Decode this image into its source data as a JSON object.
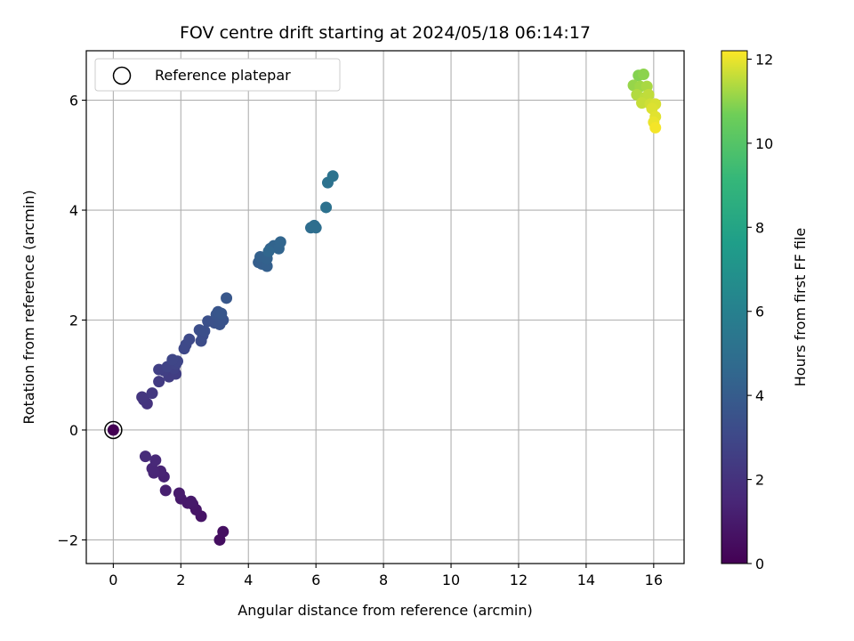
{
  "chart_data": {
    "type": "scatter",
    "title": "FOV centre drift starting at 2024/05/18 06:14:17",
    "xlabel": "Angular distance from reference (arcmin)",
    "ylabel": "Rotation from reference (arcmin)",
    "xlim": [
      -0.8,
      16.9
    ],
    "ylim": [
      -2.43,
      6.9
    ],
    "xticks": [
      0,
      2,
      4,
      6,
      8,
      10,
      12,
      14,
      16
    ],
    "yticks": [
      -2,
      0,
      2,
      4,
      6
    ],
    "ytick_labels": [
      "−2",
      "0",
      "2",
      "4",
      "6"
    ],
    "grid": true,
    "legend": {
      "position": "top-left",
      "label": "Reference platepar"
    },
    "reference_point": [
      0,
      0
    ],
    "colorbar": {
      "label": "Hours from first FF file",
      "range": [
        0,
        12.2
      ],
      "ticks": [
        0,
        2,
        4,
        6,
        8,
        10,
        12
      ]
    },
    "points": [
      [
        0.0,
        0.0,
        0.0
      ],
      [
        3.15,
        -2.0,
        0.5
      ],
      [
        3.25,
        -1.85,
        0.55
      ],
      [
        2.6,
        -1.57,
        0.75
      ],
      [
        2.45,
        -1.45,
        0.8
      ],
      [
        2.35,
        -1.35,
        0.85
      ],
      [
        2.2,
        -1.33,
        0.9
      ],
      [
        2.3,
        -1.3,
        0.92
      ],
      [
        2.0,
        -1.25,
        0.95
      ],
      [
        1.95,
        -1.15,
        1.0
      ],
      [
        1.55,
        -1.1,
        1.2
      ],
      [
        1.5,
        -0.85,
        1.3
      ],
      [
        1.4,
        -0.75,
        1.35
      ],
      [
        1.2,
        -0.78,
        1.45
      ],
      [
        1.15,
        -0.7,
        1.5
      ],
      [
        1.25,
        -0.55,
        1.55
      ],
      [
        0.95,
        -0.48,
        1.7
      ],
      [
        1.0,
        0.48,
        2.05
      ],
      [
        0.9,
        0.55,
        2.1
      ],
      [
        0.85,
        0.6,
        2.15
      ],
      [
        1.15,
        0.67,
        2.25
      ],
      [
        1.35,
        0.88,
        2.4
      ],
      [
        1.65,
        0.97,
        2.5
      ],
      [
        1.85,
        1.02,
        2.55
      ],
      [
        1.5,
        1.08,
        2.6
      ],
      [
        1.35,
        1.1,
        2.65
      ],
      [
        1.8,
        1.12,
        2.7
      ],
      [
        1.6,
        1.15,
        2.75
      ],
      [
        1.85,
        1.2,
        2.8
      ],
      [
        1.9,
        1.25,
        2.85
      ],
      [
        1.75,
        1.28,
        2.9
      ],
      [
        2.1,
        1.48,
        3.0
      ],
      [
        2.15,
        1.55,
        3.05
      ],
      [
        2.25,
        1.65,
        3.1
      ],
      [
        2.6,
        1.62,
        3.2
      ],
      [
        2.65,
        1.72,
        3.25
      ],
      [
        2.55,
        1.82,
        3.3
      ],
      [
        2.7,
        1.8,
        3.35
      ],
      [
        2.8,
        1.98,
        3.4
      ],
      [
        3.0,
        1.95,
        3.45
      ],
      [
        3.15,
        1.92,
        3.5
      ],
      [
        3.25,
        2.0,
        3.55
      ],
      [
        3.05,
        2.1,
        3.6
      ],
      [
        3.1,
        2.15,
        3.65
      ],
      [
        3.2,
        2.12,
        3.7
      ],
      [
        3.35,
        2.4,
        3.75
      ],
      [
        4.3,
        3.05,
        4.1
      ],
      [
        4.4,
        3.02,
        4.15
      ],
      [
        4.55,
        2.98,
        4.2
      ],
      [
        4.35,
        3.15,
        4.25
      ],
      [
        4.55,
        3.12,
        4.3
      ],
      [
        4.65,
        3.3,
        4.35
      ],
      [
        4.75,
        3.35,
        4.4
      ],
      [
        4.9,
        3.3,
        4.45
      ],
      [
        4.95,
        3.42,
        4.5
      ],
      [
        4.6,
        3.25,
        4.55
      ],
      [
        5.85,
        3.68,
        4.85
      ],
      [
        5.95,
        3.72,
        4.9
      ],
      [
        6.0,
        3.68,
        4.95
      ],
      [
        6.3,
        4.05,
        5.1
      ],
      [
        6.35,
        4.5,
        5.15
      ],
      [
        6.5,
        4.62,
        5.2
      ],
      [
        15.55,
        6.45,
        10.9
      ],
      [
        15.7,
        6.47,
        11.0
      ],
      [
        15.4,
        6.27,
        11.1
      ],
      [
        15.6,
        6.25,
        11.2
      ],
      [
        15.8,
        6.25,
        11.3
      ],
      [
        15.5,
        6.1,
        11.4
      ],
      [
        15.75,
        6.05,
        11.5
      ],
      [
        15.85,
        6.1,
        11.55
      ],
      [
        15.65,
        5.95,
        11.6
      ],
      [
        15.9,
        5.93,
        11.7
      ],
      [
        16.05,
        5.93,
        11.8
      ],
      [
        15.95,
        5.85,
        11.85
      ],
      [
        16.05,
        5.7,
        11.9
      ],
      [
        16.0,
        5.6,
        12.0
      ],
      [
        16.05,
        5.5,
        12.1
      ]
    ]
  }
}
